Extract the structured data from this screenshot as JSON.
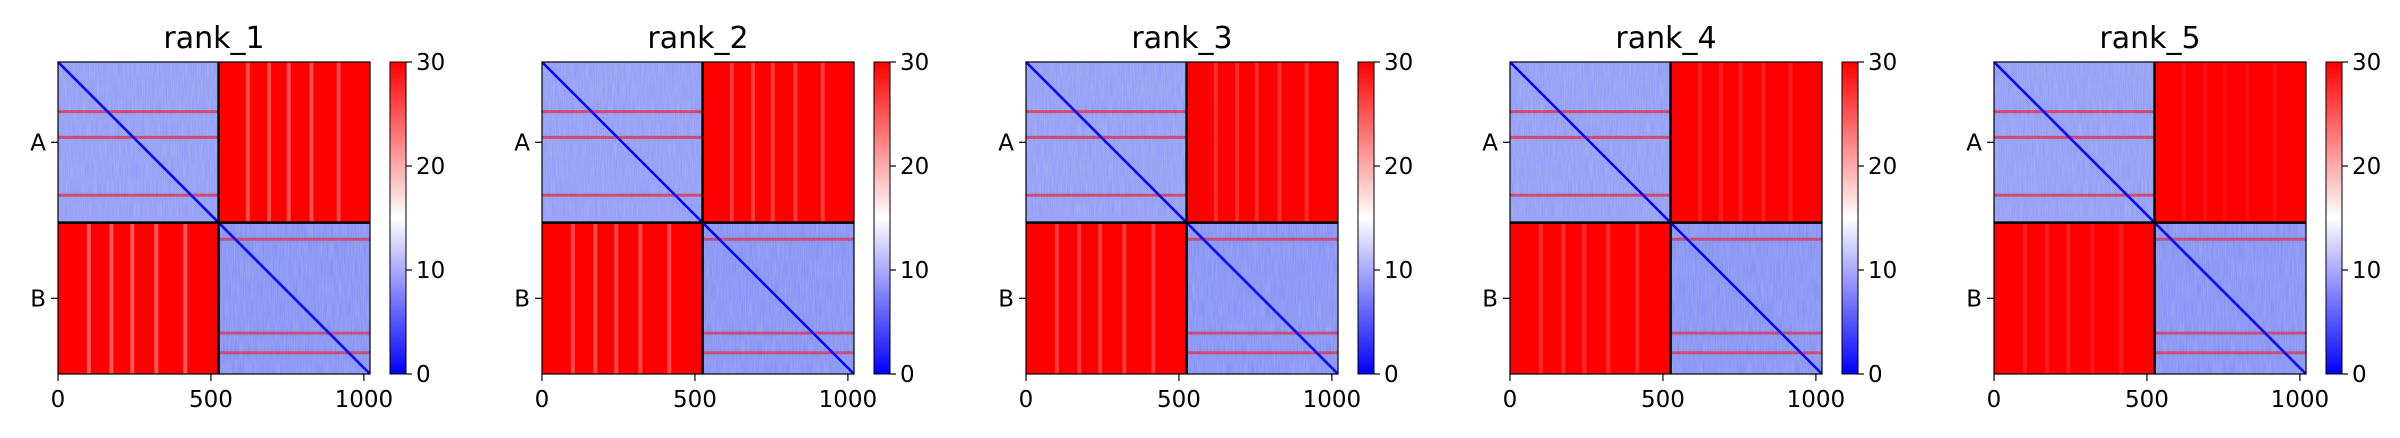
{
  "chart_data": [
    {
      "type": "heatmap",
      "title": "rank_1",
      "xticks": [
        "0",
        "500",
        "1000"
      ],
      "yticks": [
        "A",
        "B"
      ],
      "colorbar": {
        "ticks": [
          "0",
          "10",
          "20",
          "30"
        ],
        "range": [
          0,
          30
        ],
        "colormap": "bwr"
      },
      "xlim": [
        0,
        1020
      ],
      "chains": [
        "A",
        "B"
      ],
      "chain_boundary": 525
    },
    {
      "type": "heatmap",
      "title": "rank_2",
      "xticks": [
        "0",
        "500",
        "1000"
      ],
      "yticks": [
        "A",
        "B"
      ],
      "colorbar": {
        "ticks": [
          "0",
          "10",
          "20",
          "30"
        ],
        "range": [
          0,
          30
        ],
        "colormap": "bwr"
      },
      "xlim": [
        0,
        1020
      ],
      "chains": [
        "A",
        "B"
      ],
      "chain_boundary": 525
    },
    {
      "type": "heatmap",
      "title": "rank_3",
      "xticks": [
        "0",
        "500",
        "1000"
      ],
      "yticks": [
        "A",
        "B"
      ],
      "colorbar": {
        "ticks": [
          "0",
          "10",
          "20",
          "30"
        ],
        "range": [
          0,
          30
        ],
        "colormap": "bwr"
      },
      "xlim": [
        0,
        1020
      ],
      "chains": [
        "A",
        "B"
      ],
      "chain_boundary": 525
    },
    {
      "type": "heatmap",
      "title": "rank_4",
      "xticks": [
        "0",
        "500",
        "1000"
      ],
      "yticks": [
        "A",
        "B"
      ],
      "colorbar": {
        "ticks": [
          "0",
          "10",
          "20",
          "30"
        ],
        "range": [
          0,
          30
        ],
        "colormap": "bwr"
      },
      "xlim": [
        0,
        1020
      ],
      "chains": [
        "A",
        "B"
      ],
      "chain_boundary": 525
    },
    {
      "type": "heatmap",
      "title": "rank_5",
      "xticks": [
        "0",
        "500",
        "1000"
      ],
      "yticks": [
        "A",
        "B"
      ],
      "colorbar": {
        "ticks": [
          "0",
          "10",
          "20",
          "30"
        ],
        "range": [
          0,
          30
        ],
        "colormap": "bwr"
      },
      "xlim": [
        0,
        1020
      ],
      "chains": [
        "A",
        "B"
      ],
      "chain_boundary": 525
    }
  ],
  "colors": {
    "low": "#0000ff",
    "mid": "#ffffff",
    "high": "#ff0000",
    "divider": "#000000"
  }
}
